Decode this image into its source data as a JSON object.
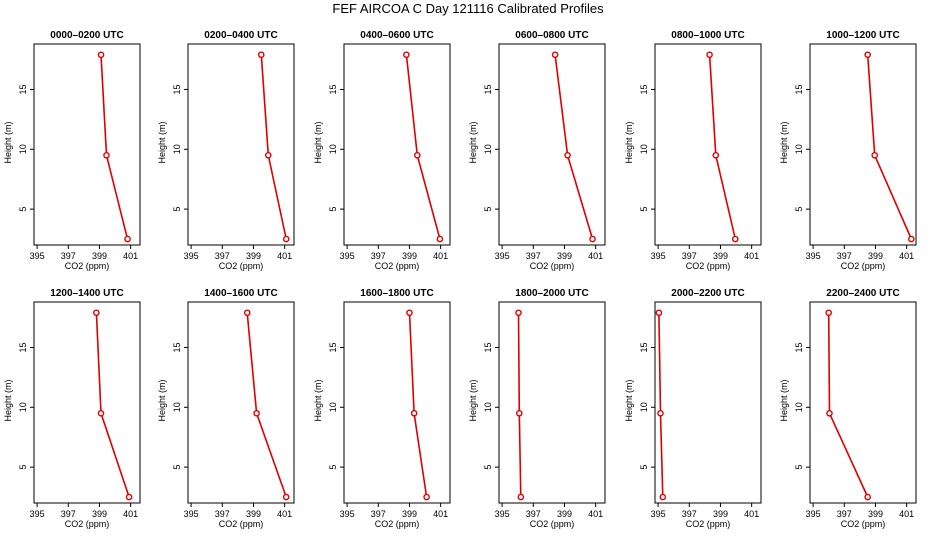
{
  "title": "FEF AIRCOA C  Day 121116  Calibrated Profiles",
  "chart_data": {
    "type": "line",
    "title": "FEF AIRCOA C  Day 121116  Calibrated Profiles",
    "xlabel": "CO2 (ppm)",
    "ylabel": "Height (m)",
    "xlim": [
      394.8,
      401.6
    ],
    "ylim": [
      2,
      18.8
    ],
    "xticks": [
      395,
      397,
      399,
      401
    ],
    "yticks": [
      5,
      10,
      15
    ],
    "line_color": "#dd0000",
    "panels": [
      {
        "title": "0000–0200 UTC",
        "points": [
          {
            "co2": 399.1,
            "height": 17.9
          },
          {
            "co2": 399.45,
            "height": 9.5
          },
          {
            "co2": 400.8,
            "height": 2.5
          }
        ]
      },
      {
        "title": "0200–0400 UTC",
        "points": [
          {
            "co2": 399.5,
            "height": 17.9
          },
          {
            "co2": 399.95,
            "height": 9.5
          },
          {
            "co2": 401.1,
            "height": 2.5
          }
        ]
      },
      {
        "title": "0400–0600 UTC",
        "points": [
          {
            "co2": 398.8,
            "height": 17.9
          },
          {
            "co2": 399.5,
            "height": 9.5
          },
          {
            "co2": 400.95,
            "height": 2.5
          }
        ]
      },
      {
        "title": "0600–0800 UTC",
        "points": [
          {
            "co2": 398.4,
            "height": 17.9
          },
          {
            "co2": 399.2,
            "height": 9.5
          },
          {
            "co2": 400.8,
            "height": 2.5
          }
        ]
      },
      {
        "title": "0800–1000 UTC",
        "points": [
          {
            "co2": 398.3,
            "height": 17.9
          },
          {
            "co2": 398.7,
            "height": 9.5
          },
          {
            "co2": 399.95,
            "height": 2.5
          }
        ]
      },
      {
        "title": "1000–1200 UTC",
        "points": [
          {
            "co2": 398.5,
            "height": 17.9
          },
          {
            "co2": 398.95,
            "height": 9.5
          },
          {
            "co2": 401.3,
            "height": 2.5
          }
        ]
      },
      {
        "title": "1200–1400 UTC",
        "points": [
          {
            "co2": 398.8,
            "height": 17.9
          },
          {
            "co2": 399.1,
            "height": 9.5
          },
          {
            "co2": 400.9,
            "height": 2.5
          }
        ]
      },
      {
        "title": "1400–1600 UTC",
        "points": [
          {
            "co2": 398.6,
            "height": 17.9
          },
          {
            "co2": 399.2,
            "height": 9.5
          },
          {
            "co2": 401.1,
            "height": 2.5
          }
        ]
      },
      {
        "title": "1600–1800 UTC",
        "points": [
          {
            "co2": 399.0,
            "height": 17.9
          },
          {
            "co2": 399.3,
            "height": 9.5
          },
          {
            "co2": 400.1,
            "height": 2.5
          }
        ]
      },
      {
        "title": "1800–2000 UTC",
        "points": [
          {
            "co2": 396.05,
            "height": 17.9
          },
          {
            "co2": 396.1,
            "height": 9.5
          },
          {
            "co2": 396.2,
            "height": 2.5
          }
        ]
      },
      {
        "title": "2000–2200 UTC",
        "points": [
          {
            "co2": 395.05,
            "height": 17.9
          },
          {
            "co2": 395.15,
            "height": 9.5
          },
          {
            "co2": 395.3,
            "height": 2.5
          }
        ]
      },
      {
        "title": "2200–2400 UTC",
        "points": [
          {
            "co2": 396.0,
            "height": 17.9
          },
          {
            "co2": 396.05,
            "height": 9.5
          },
          {
            "co2": 398.5,
            "height": 2.5
          }
        ]
      }
    ]
  }
}
